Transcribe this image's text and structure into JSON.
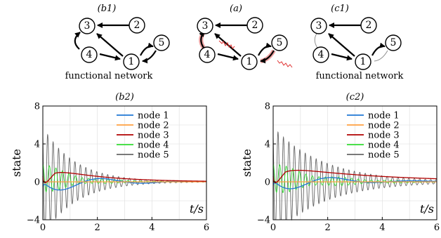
{
  "panels": {
    "b1": {
      "title": "(b1)",
      "caption": "functional network"
    },
    "a": {
      "title": "(a)"
    },
    "c1": {
      "title": "(c1)",
      "caption": "functional network"
    }
  },
  "nodes": [
    "1",
    "2",
    "3",
    "4",
    "5"
  ],
  "colors": {
    "node1": "#1f77d4",
    "node2": "#ffa040",
    "node3": "#b00000",
    "node4": "#33dd33",
    "node5": "#666666",
    "highlight": "#e88a8a",
    "noise": "#e03030"
  },
  "chart_data": [
    {
      "type": "line",
      "title": "(b2)",
      "ylabel": "state",
      "xlabel": "t/s",
      "xlim": [
        0,
        6
      ],
      "ylim": [
        -4,
        8
      ],
      "xticks": [
        0,
        2,
        4,
        6
      ],
      "yticks": [
        -4,
        0,
        4,
        8
      ],
      "grid": true,
      "legend_position": "top-right",
      "series": [
        {
          "name": "node 1"
        },
        {
          "name": "node 2"
        },
        {
          "name": "node 3"
        },
        {
          "name": "node 4"
        },
        {
          "name": "node 5"
        }
      ]
    },
    {
      "type": "line",
      "title": "(c2)",
      "ylabel": "state",
      "xlabel": "t/s",
      "xlim": [
        0,
        6
      ],
      "ylim": [
        -4,
        8
      ],
      "xticks": [
        0,
        2,
        4,
        6
      ],
      "yticks": [
        -4,
        0,
        4,
        8
      ],
      "grid": true,
      "legend_position": "top-right",
      "series": [
        {
          "name": "node 1"
        },
        {
          "name": "node 2"
        },
        {
          "name": "node 3"
        },
        {
          "name": "node 4"
        },
        {
          "name": "node 5"
        }
      ]
    }
  ]
}
